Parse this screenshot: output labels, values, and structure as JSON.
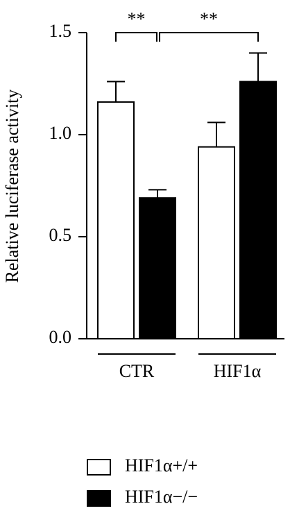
{
  "chart_data": {
    "type": "bar",
    "y_label": "Relative luciferase activity",
    "categories": [
      "CTR",
      "HIF1α"
    ],
    "series": [
      {
        "name": "HIF1α+/+",
        "color": "#ffffff",
        "values": [
          1.16,
          0.94
        ],
        "errors": [
          0.1,
          0.12
        ]
      },
      {
        "name": "HIF1α−/−",
        "color": "#000000",
        "values": [
          0.69,
          1.26
        ],
        "errors": [
          0.04,
          0.14
        ]
      }
    ],
    "ylim": [
      0,
      1.5
    ],
    "yticks": [
      {
        "value": 0,
        "label": "0.0"
      },
      0.5,
      {
        "value": 1,
        "label": "1.0"
      },
      1.5
    ],
    "annotations": [
      "**",
      "**"
    ],
    "grid": false
  }
}
